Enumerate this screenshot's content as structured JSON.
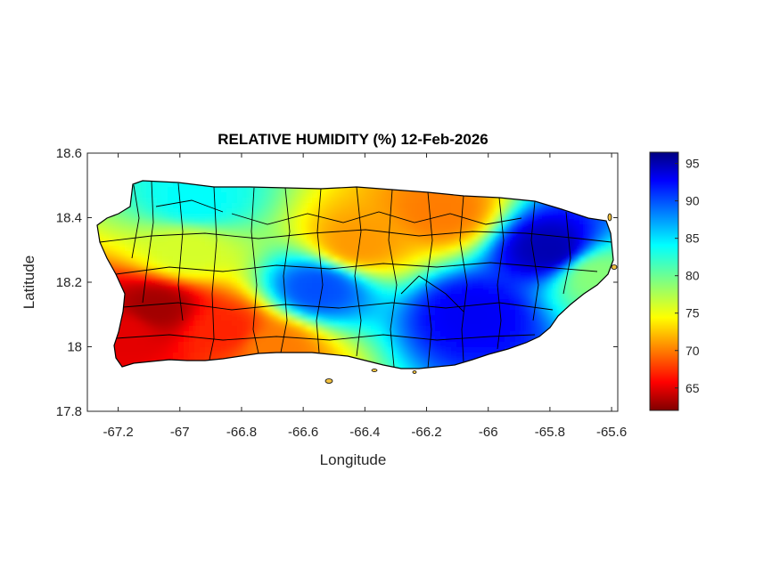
{
  "chart_data": {
    "type": "heatmap",
    "title": "RELATIVE HUMIDITY (%) 12-Feb-2026",
    "xlabel": "Longitude",
    "ylabel": "Latitude",
    "xlim": [
      -67.3,
      -65.58
    ],
    "ylim": [
      17.8,
      18.6
    ],
    "x_ticks": [
      -67.2,
      -67,
      -66.8,
      -66.6,
      -66.4,
      -66.2,
      -66,
      -65.8,
      -65.6
    ],
    "x_tick_labels": [
      "-67.2",
      "-67",
      "-66.8",
      "-66.6",
      "-66.4",
      "-66.2",
      "-66",
      "-65.8",
      "-65.6"
    ],
    "y_ticks": [
      17.8,
      18,
      18.2,
      18.4,
      18.6
    ],
    "y_tick_labels": [
      "17.8",
      "18",
      "18.2",
      "18.4",
      "18.6"
    ],
    "colorbar": {
      "range": [
        62,
        96.5
      ],
      "ticks": [
        65,
        70,
        75,
        80,
        85,
        90,
        95
      ],
      "tick_labels": [
        "65",
        "70",
        "75",
        "80",
        "85",
        "90",
        "95"
      ],
      "colormap": "jet"
    },
    "field_features": [
      {
        "lon": -67.08,
        "lat": 18.12,
        "value": 63
      },
      {
        "lon": -67.18,
        "lat": 18.05,
        "value": 65
      },
      {
        "lon": -66.85,
        "lat": 18.05,
        "value": 67
      },
      {
        "lon": -66.7,
        "lat": 18.0,
        "value": 70
      },
      {
        "lon": -66.15,
        "lat": 18.42,
        "value": 70
      },
      {
        "lon": -66.42,
        "lat": 18.32,
        "value": 71
      },
      {
        "lon": -66.98,
        "lat": 18.3,
        "value": 76
      },
      {
        "lon": -66.55,
        "lat": 18.18,
        "value": 90
      },
      {
        "lon": -66.05,
        "lat": 18.1,
        "value": 93
      },
      {
        "lon": -65.8,
        "lat": 18.3,
        "value": 95
      },
      {
        "lon": -66.95,
        "lat": 18.45,
        "value": 84
      },
      {
        "lon": -65.65,
        "lat": 18.22,
        "value": 79
      }
    ]
  }
}
